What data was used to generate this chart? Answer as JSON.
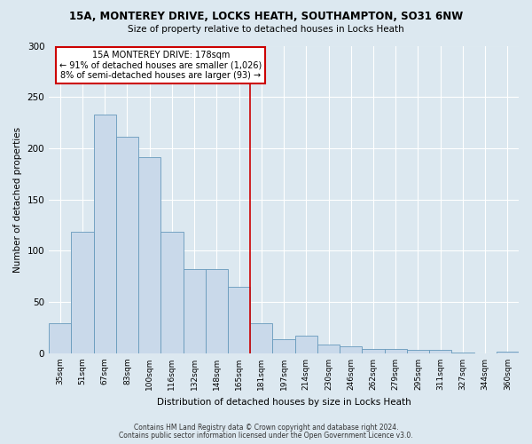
{
  "title1": "15A, MONTEREY DRIVE, LOCKS HEATH, SOUTHAMPTON, SO31 6NW",
  "title2": "Size of property relative to detached houses in Locks Heath",
  "xlabel": "Distribution of detached houses by size in Locks Heath",
  "ylabel": "Number of detached properties",
  "footnote1": "Contains HM Land Registry data © Crown copyright and database right 2024.",
  "footnote2": "Contains public sector information licensed under the Open Government Licence v3.0.",
  "bar_labels": [
    "35sqm",
    "51sqm",
    "67sqm",
    "83sqm",
    "100sqm",
    "116sqm",
    "132sqm",
    "148sqm",
    "165sqm",
    "181sqm",
    "197sqm",
    "214sqm",
    "230sqm",
    "246sqm",
    "262sqm",
    "279sqm",
    "295sqm",
    "311sqm",
    "327sqm",
    "344sqm",
    "360sqm"
  ],
  "bar_values": [
    29,
    119,
    233,
    211,
    191,
    119,
    82,
    82,
    65,
    29,
    14,
    17,
    9,
    7,
    4,
    4,
    3,
    3,
    1,
    0,
    2
  ],
  "bar_color": "#c9d9ea",
  "bar_edge_color": "#6699bb",
  "red_line_index": 9,
  "annotation_line1": "15A MONTEREY DRIVE: 178sqm",
  "annotation_line2": "← 91% of detached houses are smaller (1,026)",
  "annotation_line3": "8% of semi-detached houses are larger (93) →",
  "red_line_color": "#cc0000",
  "ylim": [
    0,
    300
  ],
  "yticks": [
    0,
    50,
    100,
    150,
    200,
    250,
    300
  ],
  "axes_bg": "#dce8f0",
  "fig_bg": "#dce8f0"
}
